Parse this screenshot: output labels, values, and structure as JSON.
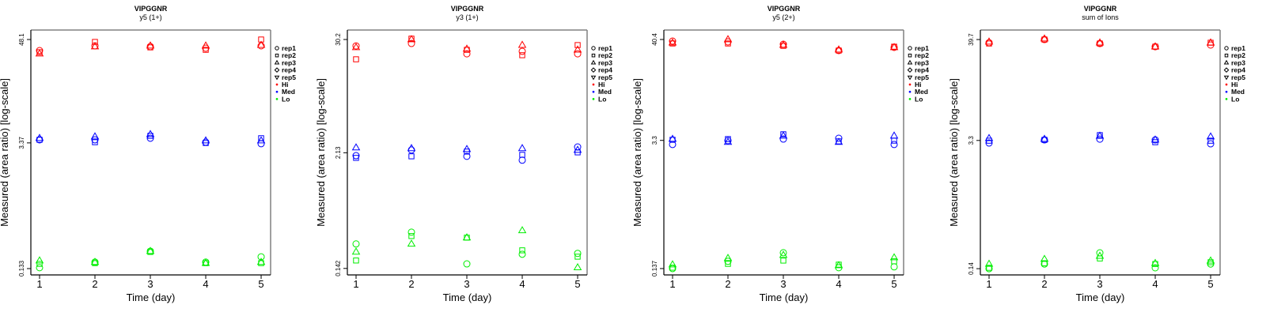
{
  "colors": {
    "Hi": "#ff0000",
    "Med": "#0000ff",
    "Lo": "#00ee00",
    "frame_top_right": "#808080",
    "axis": "#000000"
  },
  "legend": {
    "items": [
      {
        "label": "rep1",
        "symbol": "circle-icon"
      },
      {
        "label": "rep2",
        "symbol": "square-icon"
      },
      {
        "label": "rep3",
        "symbol": "triangle-up-icon"
      },
      {
        "label": "rep4",
        "symbol": "diamond-icon"
      },
      {
        "label": "rep5",
        "symbol": "triangle-down-icon"
      },
      {
        "label": "Hi",
        "symbol": "dot-icon",
        "color_key": "Hi"
      },
      {
        "label": "Med",
        "symbol": "dot-icon",
        "color_key": "Med"
      },
      {
        "label": "Lo",
        "symbol": "dot-icon",
        "color_key": "Lo"
      }
    ]
  },
  "chart_data": [
    {
      "type": "scatter",
      "title": "VIPGGNR",
      "subtitle": "y5 (1+)",
      "xlabel": "Time (day)",
      "ylabel": "Measured (area ratio) [log-scale]",
      "yscale": "log",
      "x": [
        1,
        2,
        3,
        4,
        5
      ],
      "xticks": [
        "1",
        "2",
        "3",
        "4",
        "5"
      ],
      "xlim": [
        0.843,
        5.171
      ],
      "yticks": [
        {
          "value": 48.1,
          "label": "48.1"
        },
        {
          "value": 3.37,
          "label": "3.37"
        },
        {
          "value": 0.133,
          "label": "0.133"
        }
      ],
      "ylim": [
        0.113,
        61.4
      ],
      "grid": false,
      "legend_position": "right",
      "series": [
        {
          "group": "Hi",
          "rep": "rep1",
          "values": [
            36.2,
            40.9,
            40.1,
            38.5,
            40.9
          ]
        },
        {
          "group": "Hi",
          "rep": "rep2",
          "values": [
            34.7,
            45.2,
            39.3,
            36.9,
            48.1
          ]
        },
        {
          "group": "Hi",
          "rep": "rep3",
          "values": [
            33.4,
            40.1,
            40.9,
            40.9,
            41.6
          ]
        },
        {
          "group": "Med",
          "rep": "rep1",
          "values": [
            3.65,
            3.65,
            3.8,
            3.43,
            3.3
          ]
        },
        {
          "group": "Med",
          "rep": "rep2",
          "values": [
            3.65,
            3.43,
            4.04,
            3.36,
            3.8
          ]
        },
        {
          "group": "Med",
          "rep": "rep3",
          "values": [
            3.8,
            3.96,
            4.2,
            3.57,
            3.57
          ]
        },
        {
          "group": "Lo",
          "rep": "rep1",
          "values": [
            0.136,
            0.157,
            0.208,
            0.157,
            0.18
          ]
        },
        {
          "group": "Lo",
          "rep": "rep2",
          "values": [
            0.15,
            0.153,
            0.204,
            0.153,
            0.153
          ]
        },
        {
          "group": "Lo",
          "rep": "rep3",
          "values": [
            0.163,
            0.157,
            0.208,
            0.153,
            0.157
          ]
        }
      ]
    },
    {
      "type": "scatter",
      "title": "VIPGGNR",
      "subtitle": "y3 (1+)",
      "xlabel": "Time (day)",
      "ylabel": "Measured (area ratio) [log-scale]",
      "yscale": "log",
      "x": [
        1,
        2,
        3,
        4,
        5
      ],
      "xticks": [
        "1",
        "2",
        "3",
        "4",
        "5"
      ],
      "xlim": [
        0.843,
        5.171
      ],
      "yticks": [
        {
          "value": 30.2,
          "label": "30.2"
        },
        {
          "value": 2.13,
          "label": "2.13"
        },
        {
          "value": 0.142,
          "label": "0.142"
        }
      ],
      "ylim": [
        0.122,
        37.7
      ],
      "grid": false,
      "legend_position": "right",
      "series": [
        {
          "group": "Hi",
          "rep": "rep1",
          "values": [
            26.0,
            27.5,
            21.6,
            22.9,
            21.6
          ]
        },
        {
          "group": "Hi",
          "rep": "rep2",
          "values": [
            19.0,
            30.8,
            23.7,
            20.9,
            26.5
          ]
        },
        {
          "group": "Hi",
          "rep": "rep3",
          "values": [
            25.1,
            30.2,
            24.2,
            26.5,
            23.7
          ]
        },
        {
          "group": "Med",
          "rep": "rep1",
          "values": [
            1.99,
            2.27,
            1.96,
            1.79,
            2.44
          ]
        },
        {
          "group": "Med",
          "rep": "rep2",
          "values": [
            1.89,
            1.96,
            2.19,
            2.03,
            2.15
          ]
        },
        {
          "group": "Med",
          "rep": "rep3",
          "values": [
            2.4,
            2.36,
            2.31,
            2.36,
            2.27
          ]
        },
        {
          "group": "Lo",
          "rep": "rep1",
          "values": [
            0.252,
            0.332,
            0.158,
            0.198,
            0.202
          ]
        },
        {
          "group": "Lo",
          "rep": "rep2",
          "values": [
            0.171,
            0.303,
            0.292,
            0.217,
            0.187
          ]
        },
        {
          "group": "Lo",
          "rep": "rep3",
          "values": [
            0.209,
            0.252,
            0.292,
            0.345,
            0.145
          ]
        }
      ]
    },
    {
      "type": "scatter",
      "title": "VIPGGNR",
      "subtitle": "y5 (2+)",
      "xlabel": "Time (day)",
      "ylabel": "Measured (area ratio) [log-scale]",
      "yscale": "log",
      "x": [
        1,
        2,
        3,
        4,
        5
      ],
      "xticks": [
        "1",
        "2",
        "3",
        "4",
        "5"
      ],
      "xlim": [
        0.843,
        5.171
      ],
      "yticks": [
        {
          "value": 40.4,
          "label": "40.4"
        },
        {
          "value": 3.3,
          "label": "3.3"
        },
        {
          "value": 0.137,
          "label": "0.137"
        }
      ],
      "ylim": [
        0.117,
        51.1
      ],
      "grid": false,
      "legend_position": "right",
      "series": [
        {
          "group": "Hi",
          "rep": "rep1",
          "values": [
            38.8,
            38.1,
            35.9,
            30.7,
            33.2
          ]
        },
        {
          "group": "Hi",
          "rep": "rep2",
          "values": [
            36.6,
            36.6,
            34.5,
            30.7,
            33.8
          ]
        },
        {
          "group": "Hi",
          "rep": "rep3",
          "values": [
            37.3,
            40.4,
            35.2,
            31.3,
            33.2
          ]
        },
        {
          "group": "Med",
          "rep": "rep1",
          "values": [
            2.98,
            3.28,
            3.41,
            3.48,
            2.98
          ]
        },
        {
          "group": "Med",
          "rep": "rep2",
          "values": [
            3.35,
            3.41,
            3.84,
            3.22,
            3.28
          ]
        },
        {
          "group": "Med",
          "rep": "rep3",
          "values": [
            3.41,
            3.16,
            3.69,
            3.16,
            3.69
          ]
        },
        {
          "group": "Lo",
          "rep": "rep1",
          "values": [
            0.137,
            0.164,
            0.203,
            0.14,
            0.143
          ]
        },
        {
          "group": "Lo",
          "rep": "rep2",
          "values": [
            0.14,
            0.154,
            0.167,
            0.151,
            0.164
          ]
        },
        {
          "group": "Lo",
          "rep": "rep3",
          "values": [
            0.151,
            0.177,
            0.191,
            0.148,
            0.18
          ]
        }
      ]
    },
    {
      "type": "scatter",
      "title": "VIPGGNR",
      "subtitle": "sum of Ions",
      "xlabel": "Time (day)",
      "ylabel": "Measured (area ratio) [log-scale]",
      "yscale": "log",
      "x": [
        1,
        2,
        3,
        4,
        5
      ],
      "xticks": [
        "1",
        "2",
        "3",
        "4",
        "5"
      ],
      "xlim": [
        0.843,
        5.171
      ],
      "yticks": [
        {
          "value": 39.7,
          "label": "39.7"
        },
        {
          "value": 3.3,
          "label": "3.3"
        },
        {
          "value": 0.14,
          "label": "0.14"
        }
      ],
      "ylim": [
        0.12,
        50.2
      ],
      "grid": false,
      "legend_position": "right",
      "series": [
        {
          "group": "Hi",
          "rep": "rep1",
          "values": [
            36.7,
            39.7,
            36.0,
            33.3,
            34.7
          ]
        },
        {
          "group": "Hi",
          "rep": "rep2",
          "values": [
            36.0,
            39.7,
            36.0,
            33.3,
            36.7
          ]
        },
        {
          "group": "Hi",
          "rep": "rep3",
          "values": [
            37.5,
            40.5,
            36.7,
            33.3,
            36.7
          ]
        },
        {
          "group": "Med",
          "rep": "rep1",
          "values": [
            3.1,
            3.35,
            3.41,
            3.35,
            3.04
          ]
        },
        {
          "group": "Med",
          "rep": "rep2",
          "values": [
            3.28,
            3.35,
            3.76,
            3.16,
            3.28
          ]
        },
        {
          "group": "Med",
          "rep": "rep3",
          "values": [
            3.48,
            3.41,
            3.69,
            3.35,
            3.62
          ]
        },
        {
          "group": "Lo",
          "rep": "rep1",
          "values": [
            0.14,
            0.157,
            0.207,
            0.143,
            0.157
          ]
        },
        {
          "group": "Lo",
          "rep": "rep2",
          "values": [
            0.143,
            0.16,
            0.18,
            0.157,
            0.164
          ]
        },
        {
          "group": "Lo",
          "rep": "rep3",
          "values": [
            0.157,
            0.177,
            0.191,
            0.16,
            0.17
          ]
        }
      ]
    }
  ]
}
